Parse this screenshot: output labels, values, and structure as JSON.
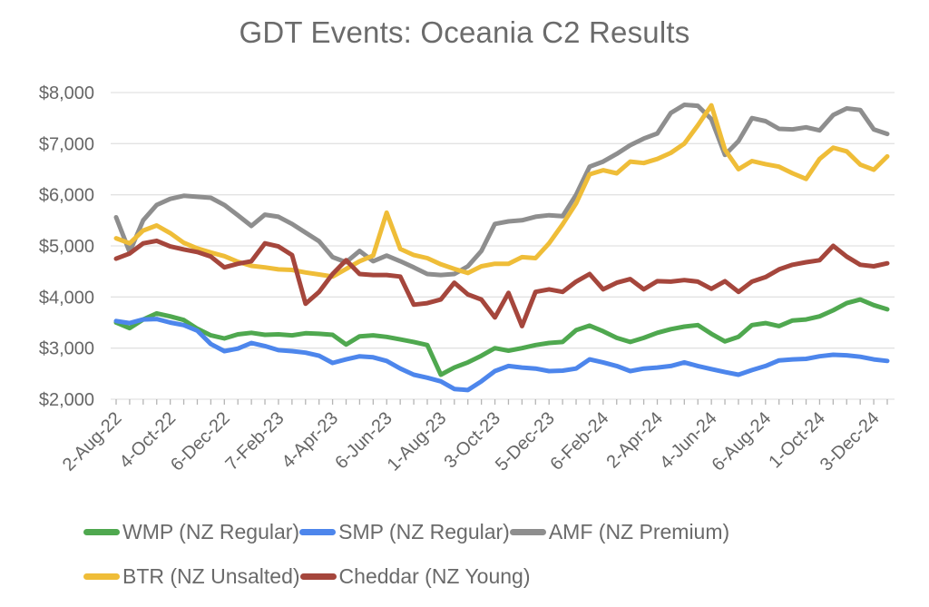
{
  "page": {
    "background": "#ffffff"
  },
  "chart_data": {
    "type": "line",
    "title": "GDT Events: Oceania C2 Results",
    "title_color": "#6b6b6b",
    "xlabel": "",
    "ylabel": "",
    "ylim": [
      2000,
      8000
    ],
    "y_tick_labels": [
      "$2,000",
      "$3,000",
      "$4,000",
      "$5,000",
      "$6,000",
      "$7,000",
      "$8,000"
    ],
    "y_tick_values": [
      2000,
      3000,
      4000,
      5000,
      6000,
      7000,
      8000
    ],
    "grid": true,
    "grid_color": "#e2e2e2",
    "tick_color": "#b5b5b5",
    "axis_text_color": "#666666",
    "legend_position": "bottom",
    "n_points": 58,
    "points_per_label": 4,
    "x_tick_labels": [
      "2-Aug-22",
      "4-Oct-22",
      "6-Dec-22",
      "7-Feb-23",
      "4-Apr-23",
      "6-Jun-23",
      "1-Aug-23",
      "3-Oct-23",
      "5-Dec-23",
      "6-Feb-24",
      "2-Apr-24",
      "4-Jun-24",
      "6-Aug-24",
      "1-Oct-24",
      "3-Dec-24"
    ],
    "series": [
      {
        "name": "WMP (NZ Regular)",
        "color": "#4fa84f",
        "values": [
          3500,
          3390,
          3560,
          3680,
          3620,
          3550,
          3380,
          3250,
          3190,
          3270,
          3300,
          3260,
          3270,
          3250,
          3290,
          3280,
          3260,
          3070,
          3230,
          3250,
          3220,
          3170,
          3120,
          3060,
          2480,
          2620,
          2720,
          2850,
          3000,
          2950,
          3000,
          3060,
          3100,
          3120,
          3350,
          3440,
          3330,
          3200,
          3120,
          3200,
          3300,
          3370,
          3420,
          3450,
          3280,
          3130,
          3220,
          3450,
          3490,
          3430,
          3540,
          3560,
          3620,
          3740,
          3880,
          3950,
          3840,
          3760
        ]
      },
      {
        "name": "SMP (NZ Regular)",
        "color": "#4d86ec",
        "values": [
          3530,
          3490,
          3560,
          3570,
          3500,
          3450,
          3340,
          3080,
          2940,
          2990,
          3100,
          3040,
          2960,
          2940,
          2910,
          2850,
          2710,
          2780,
          2840,
          2820,
          2750,
          2600,
          2480,
          2420,
          2350,
          2200,
          2180,
          2350,
          2550,
          2650,
          2620,
          2600,
          2550,
          2560,
          2600,
          2780,
          2720,
          2650,
          2550,
          2600,
          2620,
          2650,
          2720,
          2650,
          2590,
          2530,
          2480,
          2570,
          2650,
          2760,
          2780,
          2790,
          2840,
          2870,
          2860,
          2830,
          2780,
          2750
        ]
      },
      {
        "name": "AMF (NZ Premium)",
        "color": "#8e8e8e",
        "values": [
          5560,
          4880,
          5500,
          5800,
          5920,
          5980,
          5960,
          5940,
          5800,
          5600,
          5390,
          5610,
          5570,
          5430,
          5260,
          5090,
          4780,
          4680,
          4900,
          4700,
          4810,
          4700,
          4580,
          4450,
          4430,
          4450,
          4600,
          4900,
          5430,
          5480,
          5500,
          5570,
          5600,
          5580,
          6000,
          6550,
          6650,
          6800,
          6970,
          7100,
          7200,
          7600,
          7760,
          7740,
          7480,
          6780,
          7050,
          7500,
          7440,
          7290,
          7280,
          7320,
          7260,
          7560,
          7690,
          7660,
          7280,
          7190
        ]
      },
      {
        "name": "BTR (NZ Unsalted)",
        "color": "#efbd38",
        "values": [
          5150,
          5050,
          5300,
          5400,
          5250,
          5060,
          4950,
          4870,
          4800,
          4690,
          4610,
          4580,
          4540,
          4530,
          4480,
          4440,
          4400,
          4550,
          4700,
          4810,
          5650,
          4940,
          4820,
          4760,
          4640,
          4550,
          4470,
          4600,
          4650,
          4650,
          4780,
          4760,
          5050,
          5420,
          5830,
          6400,
          6480,
          6420,
          6650,
          6620,
          6700,
          6820,
          7000,
          7360,
          7750,
          6880,
          6500,
          6660,
          6600,
          6550,
          6420,
          6310,
          6700,
          6920,
          6850,
          6590,
          6490,
          6750
        ]
      },
      {
        "name": "Cheddar (NZ Young)",
        "color": "#a5463c",
        "values": [
          4750,
          4850,
          5050,
          5100,
          4990,
          4930,
          4880,
          4790,
          4580,
          4650,
          4700,
          5050,
          4990,
          4820,
          3870,
          4100,
          4450,
          4720,
          4450,
          4430,
          4430,
          4400,
          3850,
          3880,
          3950,
          4280,
          4050,
          3950,
          3600,
          4080,
          3430,
          4100,
          4150,
          4100,
          4300,
          4450,
          4150,
          4280,
          4350,
          4150,
          4310,
          4300,
          4330,
          4300,
          4160,
          4310,
          4100,
          4300,
          4390,
          4540,
          4630,
          4680,
          4720,
          5000,
          4790,
          4630,
          4600,
          4660
        ]
      }
    ],
    "draw_order": [
      2,
      3,
      4,
      0,
      1
    ],
    "line_width": 5
  }
}
